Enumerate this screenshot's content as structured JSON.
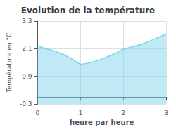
{
  "chart_data": {
    "type": "area",
    "title": "Evolution de la température",
    "xlabel": "heure par heure",
    "ylabel": "Température en °C",
    "x": [
      0,
      0.2,
      0.4,
      0.6,
      0.8,
      1.0,
      1.2,
      1.4,
      1.6,
      1.8,
      2.0,
      2.2,
      2.4,
      2.6,
      2.8,
      3.0
    ],
    "values": [
      2.22,
      2.1,
      2.0,
      1.85,
      1.65,
      1.42,
      1.48,
      1.58,
      1.72,
      1.88,
      2.08,
      2.18,
      2.28,
      2.42,
      2.58,
      2.75
    ],
    "color": "#7fd4ea",
    "xlim": [
      0,
      3
    ],
    "ylim": [
      -0.3,
      3.3
    ],
    "xticks": [
      0,
      1,
      2,
      3
    ],
    "yticks": [
      -0.3,
      0.9,
      2.1,
      3.3
    ],
    "grid": true
  }
}
